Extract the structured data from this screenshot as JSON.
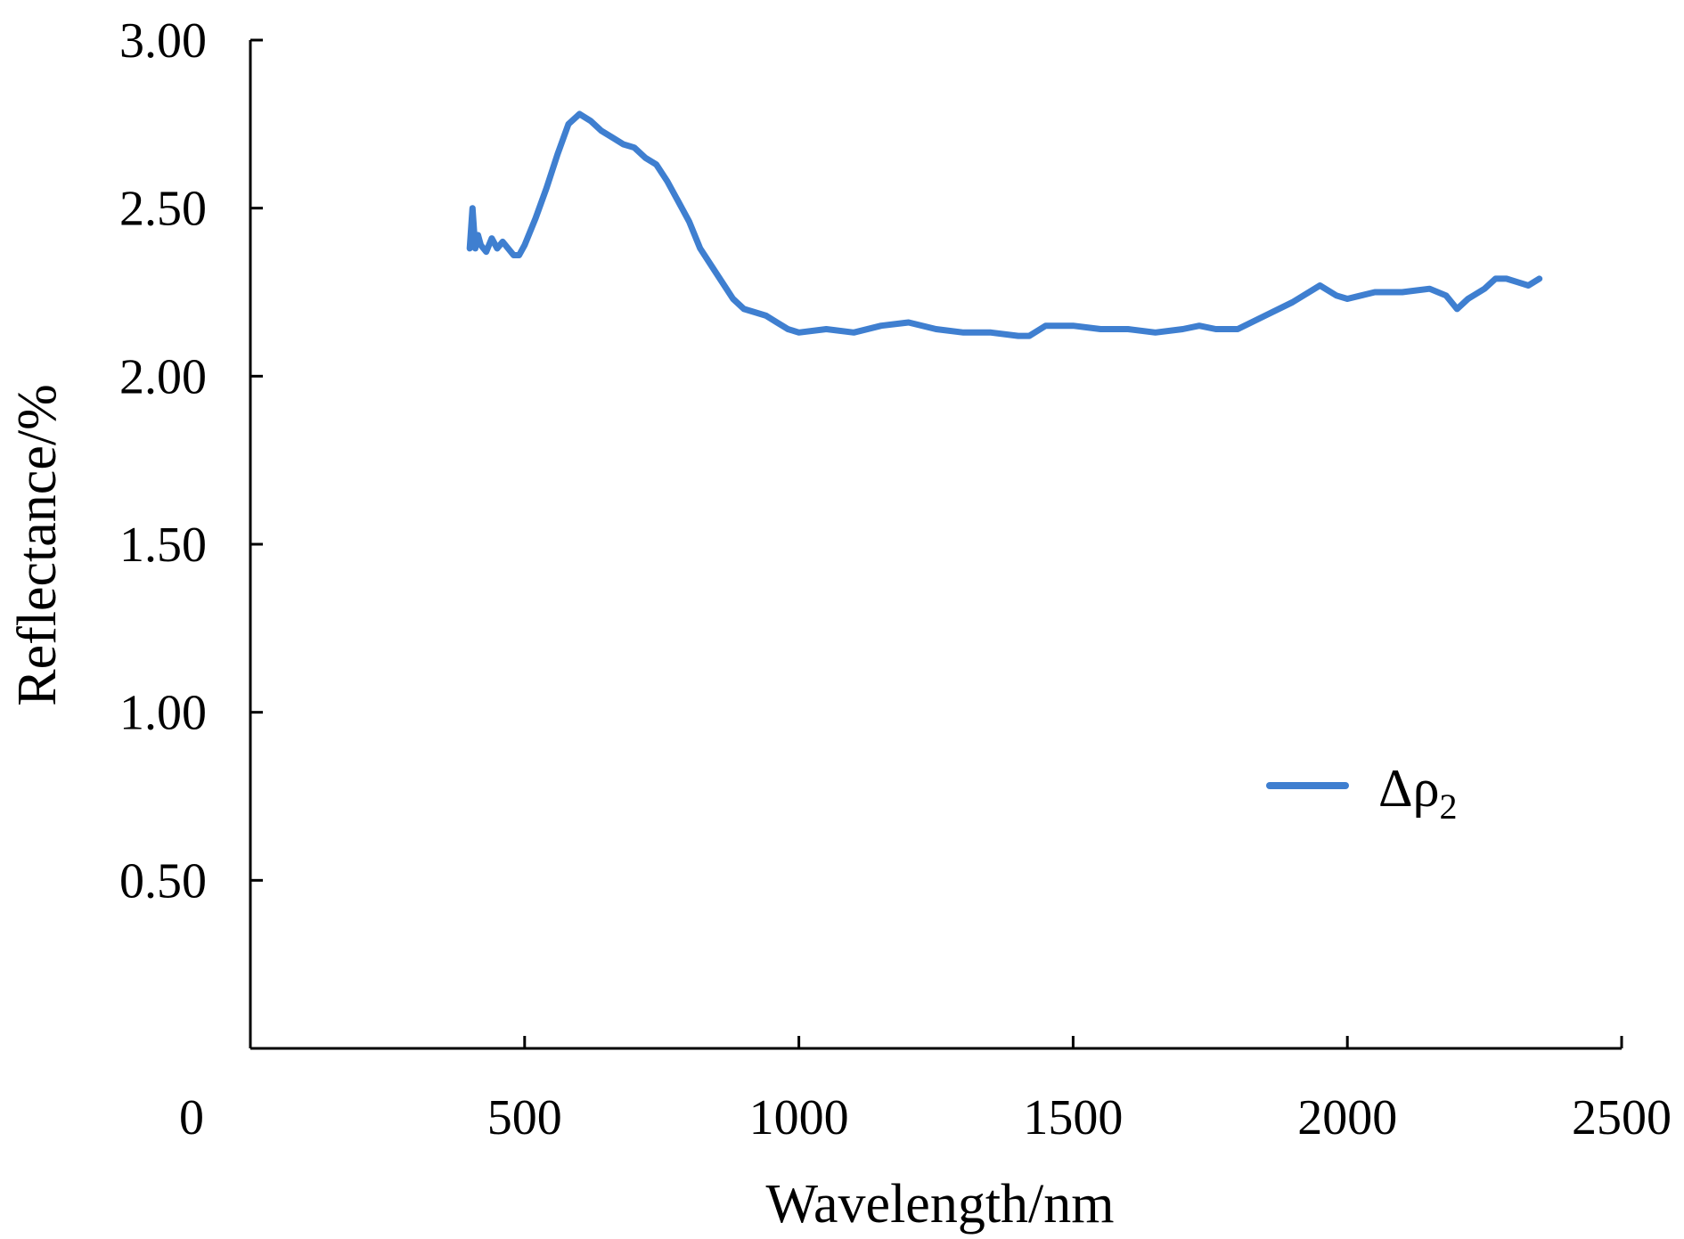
{
  "chart_data": {
    "type": "line",
    "xlabel": "Wavelength/nm",
    "ylabel": "Reflectance/%",
    "xlim": [
      0,
      2500
    ],
    "ylim": [
      0,
      3.0
    ],
    "x_ticks": [
      0,
      500,
      1000,
      1500,
      2000,
      2500
    ],
    "x_tick_labels": [
      "0",
      "500",
      "1000",
      "1500",
      "2000",
      "2500"
    ],
    "y_ticks": [
      0.5,
      1.0,
      1.5,
      2.0,
      2.5,
      3.0
    ],
    "y_tick_labels": [
      "0.50",
      "1.00",
      "1.50",
      "2.00",
      "2.50",
      "3.00"
    ],
    "grid": false,
    "legend_position": "lower-right",
    "line_color": "#3f7fd0",
    "series": [
      {
        "name": "Δρ",
        "name_subscript": "2",
        "x": [
          400,
          405,
          410,
          415,
          420,
          430,
          440,
          450,
          460,
          470,
          480,
          490,
          500,
          520,
          540,
          560,
          580,
          600,
          620,
          640,
          660,
          680,
          700,
          720,
          740,
          760,
          780,
          800,
          820,
          840,
          860,
          880,
          900,
          920,
          940,
          960,
          980,
          1000,
          1050,
          1100,
          1150,
          1200,
          1250,
          1300,
          1350,
          1400,
          1420,
          1450,
          1500,
          1550,
          1600,
          1650,
          1700,
          1730,
          1760,
          1800,
          1850,
          1900,
          1950,
          1980,
          2000,
          2050,
          2080,
          2100,
          2150,
          2180,
          2200,
          2220,
          2250,
          2270,
          2290,
          2310,
          2330,
          2350
        ],
        "y": [
          2.38,
          2.5,
          2.38,
          2.42,
          2.39,
          2.37,
          2.41,
          2.38,
          2.4,
          2.38,
          2.36,
          2.36,
          2.39,
          2.47,
          2.56,
          2.66,
          2.75,
          2.78,
          2.76,
          2.73,
          2.71,
          2.69,
          2.68,
          2.65,
          2.63,
          2.58,
          2.52,
          2.46,
          2.38,
          2.33,
          2.28,
          2.23,
          2.2,
          2.19,
          2.18,
          2.16,
          2.14,
          2.13,
          2.14,
          2.13,
          2.15,
          2.16,
          2.14,
          2.13,
          2.13,
          2.12,
          2.12,
          2.15,
          2.15,
          2.14,
          2.14,
          2.13,
          2.14,
          2.15,
          2.14,
          2.14,
          2.18,
          2.22,
          2.27,
          2.24,
          2.23,
          2.25,
          2.25,
          2.25,
          2.26,
          2.24,
          2.2,
          2.23,
          2.26,
          2.29,
          2.29,
          2.28,
          2.27,
          2.29
        ]
      }
    ]
  }
}
